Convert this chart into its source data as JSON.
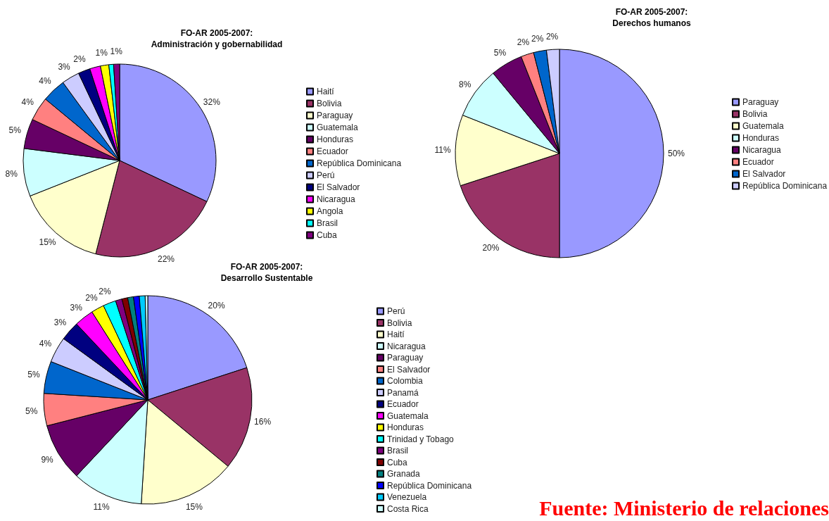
{
  "chart_data": [
    {
      "type": "pie",
      "title": "FO-AR 2005-2007:\nAdministración y gobernabilidad",
      "categories": [
        "Haití",
        "Bolivia",
        "Paraguay",
        "Guatemala",
        "Honduras",
        "Ecuador",
        "República Dominicana",
        "Perú",
        "El Salvador",
        "Nicaragua",
        "Angola",
        "Brasil",
        "Cuba"
      ],
      "values": [
        32,
        22,
        15,
        8,
        5,
        4,
        4,
        3,
        2,
        1.8,
        1.4,
        0.8,
        1.0
      ],
      "value_labels": [
        "32%",
        "22%",
        "15%",
        "8%",
        "5%",
        "4%",
        "4%",
        "3%",
        "2%",
        null,
        "1%",
        null,
        "1%"
      ],
      "colors": [
        "#9999ff",
        "#993366",
        "#ffffcc",
        "#ccffff",
        "#660066",
        "#ff8080",
        "#0066cc",
        "#ccccff",
        "#000080",
        "#ff00ff",
        "#ffff00",
        "#00ffff",
        "#800080"
      ],
      "legend": "right"
    },
    {
      "type": "pie",
      "title": "FO-AR 2005-2007:\nDerechos humanos",
      "categories": [
        "Paraguay",
        "Bolivia",
        "Guatemala",
        "Honduras",
        "Nicaragua",
        "Ecuador",
        "El Salvador",
        "República Dominicana"
      ],
      "values": [
        50,
        20,
        11,
        8,
        5,
        2,
        2,
        2
      ],
      "value_labels": [
        "50%",
        "20%",
        "11%",
        "8%",
        "5%",
        "2%",
        "2%",
        "2%"
      ],
      "colors": [
        "#9999ff",
        "#993366",
        "#ffffcc",
        "#ccffff",
        "#660066",
        "#ff8080",
        "#0066cc",
        "#ccccff"
      ],
      "legend": "right"
    },
    {
      "type": "pie",
      "title": "FO-AR 2005-2007:\nDesarrollo Sustentable",
      "categories": [
        "Perú",
        "Bolivia",
        "Haití",
        "Nicaragua",
        "Paraguay",
        "El Salvador",
        "Colombia",
        "Panamá",
        "Ecuador",
        "Guatemala",
        "Honduras",
        "Trinidad y Tobago",
        "Brasil",
        "Cuba",
        "Granada",
        "República Dominicana",
        "Venezuela",
        "Costa Rica"
      ],
      "values": [
        20,
        16,
        15,
        11,
        9,
        5,
        5,
        4,
        3,
        3,
        2,
        2,
        1,
        0.9,
        0.9,
        0.9,
        0.9,
        0.4
      ],
      "value_labels": [
        "20%",
        "16%",
        "15%",
        "11%",
        "9%",
        "5%",
        "5%",
        "4%",
        "3%",
        "3%",
        "2%",
        "2%",
        null,
        null,
        null,
        null,
        null,
        null
      ],
      "colors": [
        "#9999ff",
        "#993366",
        "#ffffcc",
        "#ccffff",
        "#660066",
        "#ff8080",
        "#0066cc",
        "#ccccff",
        "#000080",
        "#ff00ff",
        "#ffff00",
        "#00ffff",
        "#800080",
        "#800000",
        "#008080",
        "#0000ff",
        "#00ccff",
        "#ccffff"
      ],
      "legend": "right",
      "annotations": [
        "Fuente: Ministerio de relaciones"
      ]
    }
  ]
}
